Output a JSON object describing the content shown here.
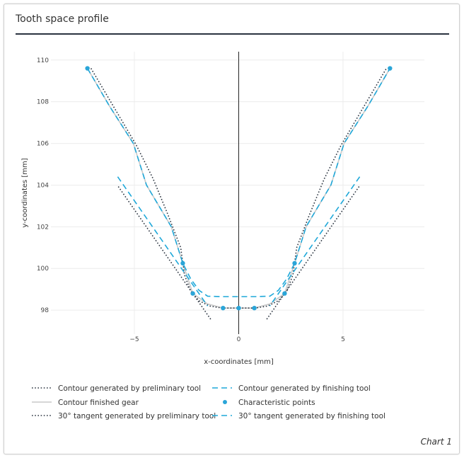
{
  "title": "Tooth space profile",
  "footer": "Chart 1",
  "chart_data": {
    "type": "line",
    "title": "Tooth space profile",
    "xlabel": "x-coordinates [mm]",
    "ylabel": "y-coordinates [mm]",
    "xlim": [
      -9,
      8.9
    ],
    "ylim": [
      96.85,
      110.4
    ],
    "xticks": [
      -5,
      0,
      5
    ],
    "xtick_labels": [
      "−5",
      "0",
      "5"
    ],
    "yticks": [
      98,
      100,
      102,
      104,
      106,
      108,
      110
    ],
    "grid": true,
    "legend_position": "bottom",
    "series": [
      {
        "name": "Contour generated by preliminary tool",
        "style": "dotted",
        "color": "#2b3440",
        "x": [
          -7.08,
          -5.9,
          -4.9,
          -4.1,
          -3.4,
          -2.78,
          -2.6,
          -2.3,
          -1.9,
          -1.4,
          -0.8,
          0,
          0.8,
          1.4,
          1.9,
          2.3,
          2.6,
          2.78,
          3.4,
          4.1,
          4.9,
          5.9,
          7.08
        ],
        "y": [
          109.6,
          107.6,
          105.9,
          104.3,
          102.6,
          101.0,
          99.7,
          98.9,
          98.45,
          98.2,
          98.1,
          98.1,
          98.1,
          98.2,
          98.45,
          98.9,
          99.7,
          101.0,
          102.6,
          104.3,
          105.9,
          107.6,
          109.6
        ]
      },
      {
        "name": "Contour generated by finishing tool",
        "style": "dashed",
        "color": "#1fa8d9",
        "x": [
          -7.25,
          -6.2,
          -5.05,
          -4.42,
          -3.23,
          -2.68,
          -2.3,
          -1.9,
          -1.49,
          -0.8,
          0,
          0.8,
          1.49,
          1.9,
          2.3,
          2.68,
          3.23,
          4.42,
          5.05,
          6.2,
          7.25
        ],
        "y": [
          109.6,
          107.8,
          106.0,
          104.0,
          102.0,
          100.25,
          99.5,
          98.95,
          98.67,
          98.65,
          98.65,
          98.65,
          98.67,
          98.95,
          99.5,
          100.25,
          102.0,
          104.0,
          106.0,
          107.8,
          109.6
        ]
      },
      {
        "name": "Contour finished gear",
        "style": "solid",
        "color": "#c8c8c8",
        "x": [
          -7.25,
          -6.2,
          -5.05,
          -4.42,
          -3.23,
          -2.68,
          -2.2,
          -1.5,
          -0.75,
          0,
          0.75,
          1.5,
          2.2,
          2.68,
          3.23,
          4.42,
          5.05,
          6.2,
          7.25
        ],
        "y": [
          109.6,
          107.8,
          106.0,
          104.0,
          102.0,
          100.25,
          98.8,
          98.3,
          98.1,
          98.1,
          98.1,
          98.3,
          98.8,
          100.25,
          102.0,
          104.0,
          106.0,
          107.8,
          109.6
        ]
      },
      {
        "name": "Characteristic points",
        "style": "markers",
        "color": "#2aa5d8",
        "x": [
          -7.25,
          -2.68,
          -2.2,
          -0.75,
          0,
          0.75,
          2.2,
          2.68,
          7.25
        ],
        "y": [
          109.6,
          100.25,
          98.8,
          98.1,
          98.1,
          98.1,
          98.8,
          100.25,
          109.6
        ]
      },
      {
        "name": "30° tangent generated by preliminary tool",
        "style": "dotted",
        "color": "#2b3440",
        "segments": [
          [
            [
              -5.77,
              103.93
            ],
            [
              -1.32,
              97.53
            ]
          ],
          [
            [
              5.77,
              103.93
            ],
            [
              1.32,
              97.53
            ]
          ]
        ]
      },
      {
        "name": "30° tangent generated by finishing tool",
        "style": "dashed",
        "color": "#1fa8d9",
        "segments": [
          [
            [
              -5.8,
              104.4
            ],
            [
              -1.49,
              98.2
            ]
          ],
          [
            [
              5.8,
              104.4
            ],
            [
              1.49,
              98.2
            ]
          ]
        ]
      }
    ]
  }
}
